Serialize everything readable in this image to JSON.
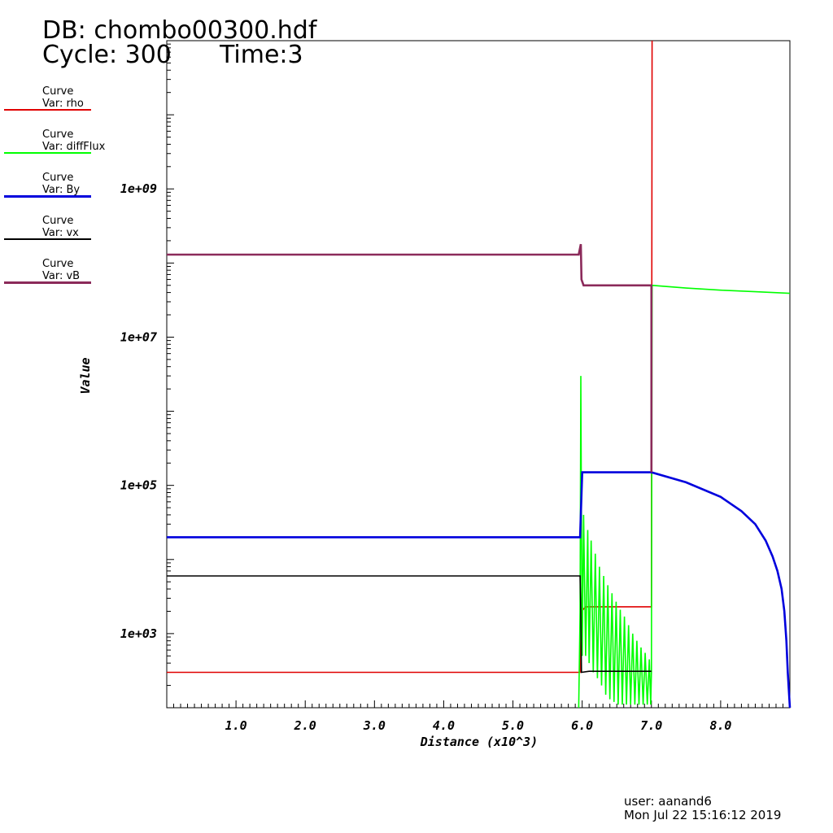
{
  "header": {
    "db": "DB: chombo00300.hdf",
    "cycle": "Cycle: 300",
    "time": "Time:3"
  },
  "legend": [
    {
      "title": "Curve",
      "var": "Var: rho",
      "color": "#e00000",
      "thickness": 2
    },
    {
      "title": "Curve",
      "var": "Var: diffFlux",
      "color": "#00ff00",
      "thickness": 2
    },
    {
      "title": "Curve",
      "var": "Var: By",
      "color": "#0000dd",
      "thickness": 3
    },
    {
      "title": "Curve",
      "var": "Var: vx",
      "color": "#000000",
      "thickness": 2
    },
    {
      "title": "Curve",
      "var": "Var: vB",
      "color": "#8b2a5a",
      "thickness": 3
    }
  ],
  "footer": {
    "user": "user: aanand6",
    "date": "Mon Jul 22 15:16:12 2019"
  },
  "chart_data": {
    "type": "line",
    "xlabel": "Distance (x10^3)",
    "ylabel": "Value",
    "yscale": "log",
    "xlim": [
      0,
      9
    ],
    "ylim": [
      100,
      100000000000.0
    ],
    "xticks": [
      {
        "v": 1,
        "label": "1.0"
      },
      {
        "v": 2,
        "label": "2.0"
      },
      {
        "v": 3,
        "label": "3.0"
      },
      {
        "v": 4,
        "label": "4.0"
      },
      {
        "v": 5,
        "label": "5.0"
      },
      {
        "v": 6,
        "label": "6.0"
      },
      {
        "v": 7,
        "label": "7.0"
      },
      {
        "v": 8,
        "label": "8.0"
      }
    ],
    "yticks": [
      {
        "v": 1000,
        "label": "1e+03"
      },
      {
        "v": 100000,
        "label": "1e+05"
      },
      {
        "v": 10000000,
        "label": "1e+07"
      },
      {
        "v": 1000000000,
        "label": "1e+09"
      }
    ],
    "series": [
      {
        "name": "rho",
        "color": "#e00000",
        "width": 1.6,
        "points": [
          [
            0,
            300
          ],
          [
            5.97,
            300
          ],
          [
            5.99,
            2000
          ],
          [
            6.05,
            2300
          ],
          [
            6.5,
            2300
          ],
          [
            7.0,
            2300
          ],
          [
            7.01,
            100000000000.0
          ]
        ]
      },
      {
        "name": "diffFlux",
        "color": "#00ff00",
        "width": 1.6,
        "points": [
          [
            5.95,
            100
          ],
          [
            5.97,
            2000
          ],
          [
            5.98,
            3000000
          ],
          [
            5.99,
            30000
          ],
          [
            6.0,
            500
          ],
          [
            6.02,
            40000
          ],
          [
            6.05,
            500
          ],
          [
            6.08,
            25000
          ],
          [
            6.1,
            400
          ],
          [
            6.13,
            18000
          ],
          [
            6.16,
            300
          ],
          [
            6.19,
            12000
          ],
          [
            6.22,
            250
          ],
          [
            6.25,
            8000
          ],
          [
            6.28,
            200
          ],
          [
            6.31,
            6000
          ],
          [
            6.34,
            150
          ],
          [
            6.37,
            4500
          ],
          [
            6.4,
            130
          ],
          [
            6.43,
            3500
          ],
          [
            6.46,
            120
          ],
          [
            6.49,
            2700
          ],
          [
            6.52,
            110
          ],
          [
            6.55,
            2100
          ],
          [
            6.58,
            110
          ],
          [
            6.61,
            1700
          ],
          [
            6.64,
            110
          ],
          [
            6.67,
            1300
          ],
          [
            6.7,
            110
          ],
          [
            6.73,
            1000
          ],
          [
            6.76,
            110
          ],
          [
            6.79,
            800
          ],
          [
            6.82,
            110
          ],
          [
            6.85,
            650
          ],
          [
            6.88,
            110
          ],
          [
            6.91,
            550
          ],
          [
            6.94,
            110
          ],
          [
            6.97,
            450
          ],
          [
            6.99,
            110
          ],
          [
            7.0,
            300
          ],
          [
            7.01,
            50000000
          ],
          [
            7.5,
            46000000
          ],
          [
            8.0,
            43000000
          ],
          [
            8.5,
            41000000
          ],
          [
            9.0,
            39000000
          ]
        ]
      },
      {
        "name": "By",
        "color": "#0000dd",
        "width": 2.6,
        "points": [
          [
            0,
            20000
          ],
          [
            5.97,
            20000
          ],
          [
            6.0,
            150000
          ],
          [
            7.0,
            150000
          ],
          [
            7.5,
            110000
          ],
          [
            8.0,
            70000
          ],
          [
            8.3,
            45000
          ],
          [
            8.5,
            30000
          ],
          [
            8.65,
            18000
          ],
          [
            8.75,
            11000
          ],
          [
            8.82,
            7000
          ],
          [
            8.88,
            4000
          ],
          [
            8.92,
            2000
          ],
          [
            8.95,
            800
          ],
          [
            8.97,
            300
          ],
          [
            9.0,
            100
          ]
        ]
      },
      {
        "name": "vx",
        "color": "#000000",
        "width": 1.6,
        "points": [
          [
            0,
            6000
          ],
          [
            5.97,
            6000
          ],
          [
            5.98,
            2000
          ],
          [
            5.99,
            300
          ],
          [
            6.1,
            310
          ],
          [
            6.5,
            310
          ],
          [
            7.0,
            310
          ]
        ]
      },
      {
        "name": "vB",
        "color": "#8b2a5a",
        "width": 2.6,
        "points": [
          [
            0,
            130000000
          ],
          [
            5.95,
            130000000
          ],
          [
            5.98,
            180000000
          ],
          [
            5.99,
            60000000
          ],
          [
            6.02,
            50000000
          ],
          [
            6.5,
            50000000
          ],
          [
            7.0,
            50000000
          ],
          [
            7.0,
            150000
          ]
        ]
      }
    ]
  }
}
